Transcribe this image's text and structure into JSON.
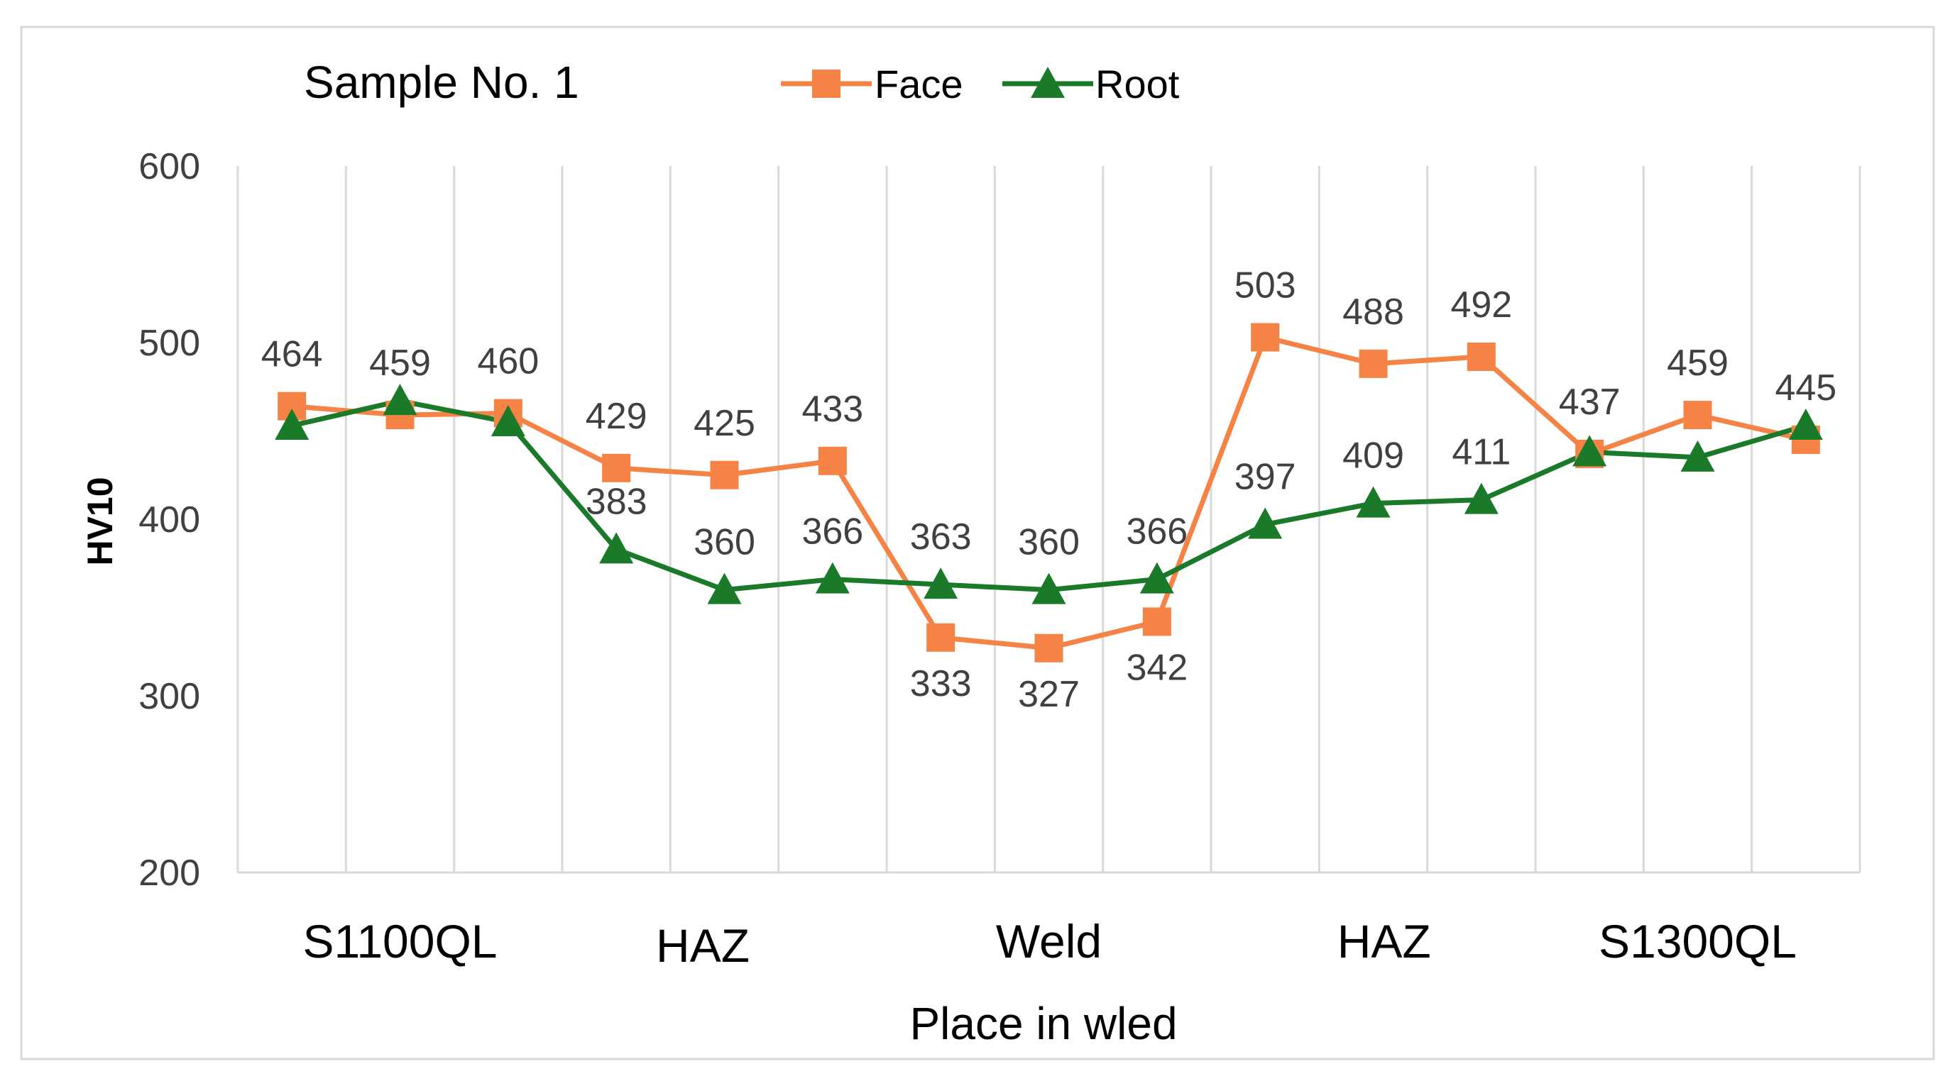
{
  "chart_data": {
    "type": "line",
    "title": "Sample No. 1",
    "xlabel": "Place in wled",
    "ylabel": "HV10",
    "ylim": [
      200,
      600
    ],
    "yticks": [
      200,
      300,
      400,
      500,
      600
    ],
    "grid": "vertical",
    "legend": "top",
    "points_count": 15,
    "region_labels": [
      "S1100QL",
      "HAZ",
      "Weld",
      "HAZ",
      "S1300QL"
    ],
    "series": [
      {
        "name": "Face",
        "color": "#F58345",
        "marker": "square",
        "values": [
          464,
          459,
          460,
          429,
          425,
          433,
          333,
          327,
          342,
          503,
          488,
          492,
          437,
          459,
          445
        ],
        "value_labels": [
          "464",
          "459",
          "460",
          "429",
          "425",
          "433",
          "333",
          "327",
          "342",
          "503",
          "488",
          "492",
          "437",
          "459",
          "445"
        ]
      },
      {
        "name": "Root",
        "color": "#1B7A2A",
        "marker": "triangle",
        "values": [
          453,
          467,
          455,
          383,
          360,
          366,
          363,
          360,
          366,
          397,
          409,
          411,
          438,
          435,
          453
        ],
        "value_labels": [
          "",
          "",
          "",
          "383",
          "360",
          "366",
          "363",
          "360",
          "366",
          "397",
          "409",
          "411",
          "",
          "",
          ""
        ]
      }
    ]
  }
}
